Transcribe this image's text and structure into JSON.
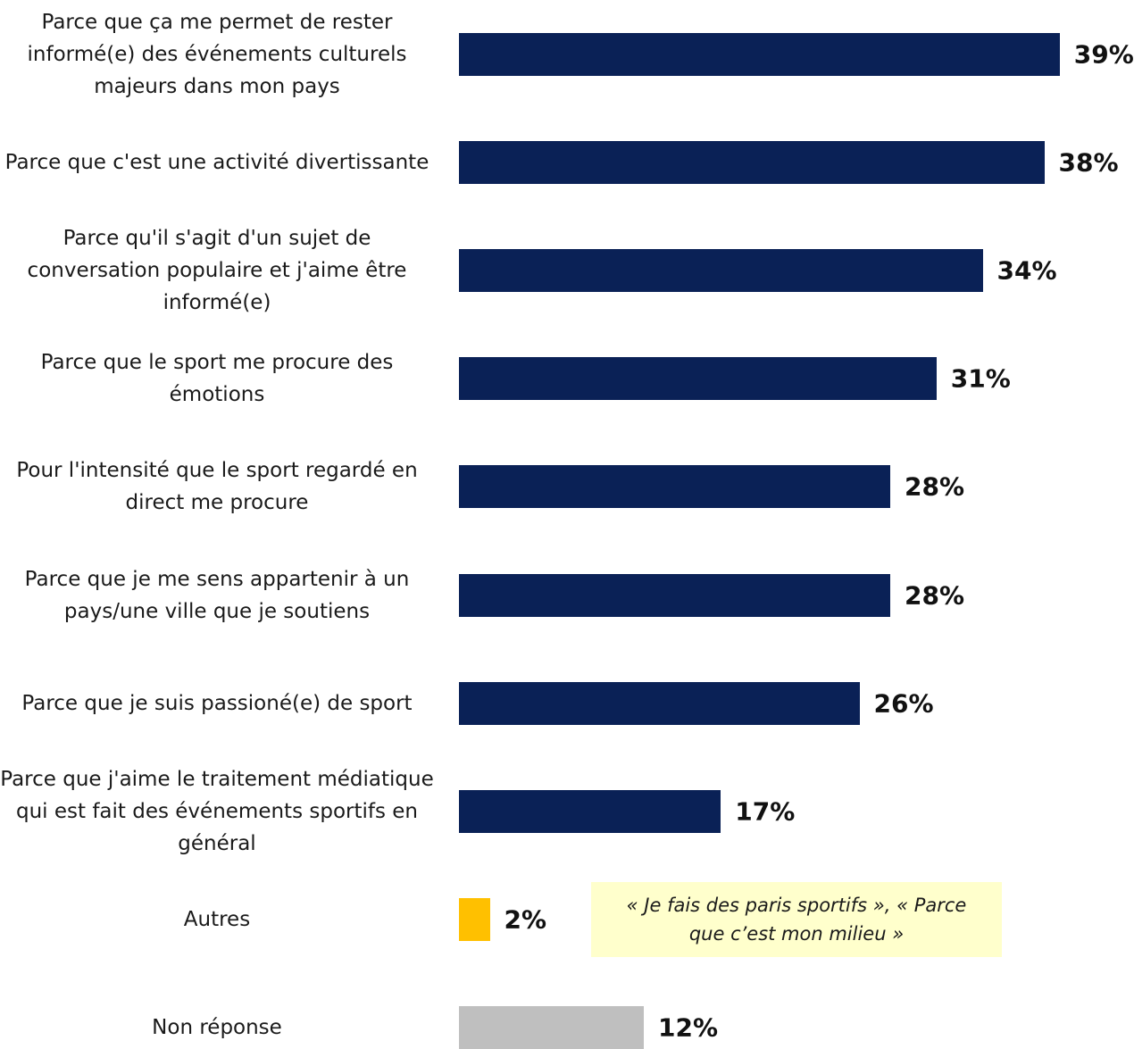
{
  "chart_data": {
    "type": "bar",
    "orientation": "horizontal",
    "title": "",
    "xlabel": "",
    "ylabel": "",
    "value_suffix": "%",
    "xlim": [
      0,
      39
    ],
    "grid": false,
    "legend": "none",
    "categories": [
      "Parce que ça me permet de rester informé(e) des événements culturels majeurs dans mon pays",
      "Parce que c'est une activité divertissante",
      "Parce qu'il s'agit d'un sujet de conversation populaire et j'aime être informé(e)",
      "Parce que le sport me procure des émotions",
      "Pour l'intensité que le sport regardé en direct me procure",
      "Parce que je me sens appartenir à un pays/une ville que je soutiens",
      "Parce que je suis passioné(e) de sport",
      "Parce que j'aime le traitement médiatique qui est fait des événements sportifs en général",
      "Autres",
      "Non réponse"
    ],
    "values": [
      39,
      38,
      34,
      31,
      28,
      28,
      26,
      17,
      2,
      12
    ],
    "value_labels": [
      "39%",
      "38%",
      "34%",
      "31%",
      "28%",
      "28%",
      "26%",
      "17%",
      "2%",
      "12%"
    ],
    "colors": [
      "#0a2156",
      "#0a2156",
      "#0a2156",
      "#0a2156",
      "#0a2156",
      "#0a2156",
      "#0a2156",
      "#0a2156",
      "#ffc000",
      "#bfbfbf"
    ],
    "annotation": {
      "category": "Autres",
      "text": "« Je fais des paris sportifs », « Parce que c’est mon milieu »",
      "background": "#ffffcc"
    }
  }
}
